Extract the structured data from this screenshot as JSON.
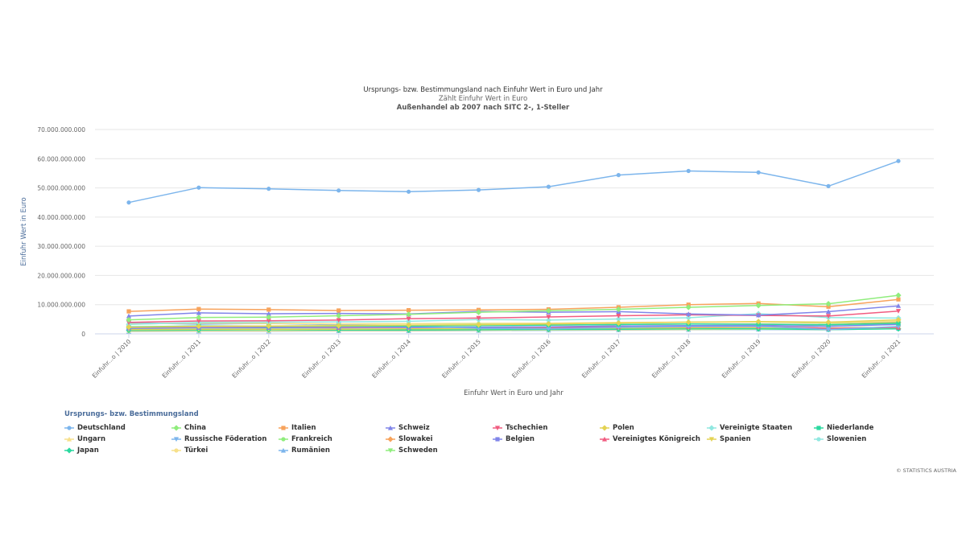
{
  "chart_data": {
    "type": "line",
    "title": "Ursprungs- bzw. Bestimmungsland nach Einfuhr Wert in Euro und Jahr",
    "subtitle": "Zählt Einfuhr Wert in Euro",
    "subtitle2": "Außenhandel ab 2007 nach SITC 2-, 1-Steller",
    "xlabel": "Einfuhr Wert in Euro und Jahr",
    "ylabel": "Einfuhr Wert in Euro",
    "categories": [
      "Einfuhr...o | 2010",
      "Einfuhr...o | 2011",
      "Einfuhr...o | 2012",
      "Einfuhr...o | 2013",
      "Einfuhr...o | 2014",
      "Einfuhr...o | 2015",
      "Einfuhr...o | 2016",
      "Einfuhr...o | 2017",
      "Einfuhr...o | 2018",
      "Einfuhr...o | 2019",
      "Einfuhr...o | 2020",
      "Einfuhr...o | 2021"
    ],
    "yticks": [
      0,
      10000000000,
      20000000000,
      30000000000,
      40000000000,
      50000000000,
      60000000000,
      70000000000
    ],
    "ytick_labels": [
      "0",
      "10.000.000.000",
      "20.000.000.000",
      "30.000.000.000",
      "40.000.000.000",
      "50.000.000.000",
      "60.000.000.000",
      "70.000.000.000"
    ],
    "ylim": [
      0,
      70000000000
    ],
    "grid": true,
    "legend_title": "Ursprungs- bzw. Bestimmungsland",
    "legend_placement": "bottom",
    "series": [
      {
        "name": "Deutschland",
        "color": "#7cb5ec",
        "marker": "circle",
        "values": [
          45000000000,
          50100000000,
          49700000000,
          49100000000,
          48700000000,
          49300000000,
          50400000000,
          54400000000,
          55800000000,
          55300000000,
          50600000000,
          59200000000
        ]
      },
      {
        "name": "China",
        "color": "#90ed7d",
        "marker": "diamond",
        "values": [
          4800000000,
          5600000000,
          5700000000,
          6200000000,
          6700000000,
          7400000000,
          7900000000,
          8400000000,
          9100000000,
          9700000000,
          10300000000,
          13200000000
        ]
      },
      {
        "name": "Italien",
        "color": "#f7a35c",
        "marker": "square",
        "values": [
          7700000000,
          8500000000,
          8300000000,
          8000000000,
          8100000000,
          8200000000,
          8400000000,
          9100000000,
          10000000000,
          10400000000,
          9300000000,
          11800000000
        ]
      },
      {
        "name": "Schweiz",
        "color": "#8085e9",
        "marker": "triangle",
        "values": [
          6100000000,
          7200000000,
          6900000000,
          7000000000,
          6800000000,
          7700000000,
          7400000000,
          7600000000,
          6800000000,
          6400000000,
          7600000000,
          9600000000
        ]
      },
      {
        "name": "Tschechien",
        "color": "#f15c80",
        "marker": "triangle-down",
        "values": [
          3900000000,
          4400000000,
          4500000000,
          4700000000,
          5200000000,
          5400000000,
          5800000000,
          6200000000,
          6500000000,
          6300000000,
          6100000000,
          7800000000
        ]
      },
      {
        "name": "Polen",
        "color": "#e4d354",
        "marker": "diamond",
        "values": [
          2300000000,
          2600000000,
          2700000000,
          2800000000,
          3000000000,
          3100000000,
          3400000000,
          3700000000,
          4000000000,
          4200000000,
          4000000000,
          4800000000
        ]
      },
      {
        "name": "Vereinigte Staaten",
        "color": "#91e8e1",
        "marker": "diamond",
        "values": [
          3200000000,
          3900000000,
          4000000000,
          4100000000,
          4300000000,
          4900000000,
          4700000000,
          5100000000,
          5500000000,
          6900000000,
          5600000000,
          5400000000
        ]
      },
      {
        "name": "Niederlande",
        "color": "#2bd9a0",
        "marker": "square",
        "values": [
          2400000000,
          2700000000,
          2600000000,
          2700000000,
          2700000000,
          2800000000,
          3000000000,
          3200000000,
          3400000000,
          3300000000,
          3100000000,
          3600000000
        ]
      },
      {
        "name": "Ungarn",
        "color": "#f7e08a",
        "marker": "triangle",
        "values": [
          3400000000,
          3700000000,
          3600000000,
          3400000000,
          3500000000,
          3600000000,
          3700000000,
          3900000000,
          4000000000,
          4100000000,
          3800000000,
          4300000000
        ]
      },
      {
        "name": "Russische Föderation",
        "color": "#7cb5ec",
        "marker": "triangle-down",
        "values": [
          3800000000,
          3300000000,
          3600000000,
          3100000000,
          2700000000,
          1900000000,
          1700000000,
          2200000000,
          2500000000,
          2600000000,
          1500000000,
          2500000000
        ]
      },
      {
        "name": "Frankreich",
        "color": "#90ed7d",
        "marker": "circle",
        "values": [
          3400000000,
          3700000000,
          3500000000,
          3400000000,
          3500000000,
          3500000000,
          3600000000,
          3800000000,
          4000000000,
          4100000000,
          3600000000,
          4200000000
        ]
      },
      {
        "name": "Slowakei",
        "color": "#f7a35c",
        "marker": "diamond",
        "values": [
          2300000000,
          2700000000,
          2600000000,
          2600000000,
          2700000000,
          2900000000,
          3000000000,
          3200000000,
          3400000000,
          3400000000,
          3100000000,
          3900000000
        ]
      },
      {
        "name": "Belgien",
        "color": "#8085e9",
        "marker": "square",
        "values": [
          1900000000,
          2100000000,
          2100000000,
          2200000000,
          2200000000,
          2300000000,
          2400000000,
          2700000000,
          2800000000,
          2900000000,
          2600000000,
          3200000000
        ]
      },
      {
        "name": "Vereinigtes Königreich",
        "color": "#f15c80",
        "marker": "triangle",
        "values": [
          2100000000,
          2200000000,
          2200000000,
          2100000000,
          2200000000,
          2300000000,
          2200000000,
          2300000000,
          2400000000,
          2500000000,
          1900000000,
          2200000000
        ]
      },
      {
        "name": "Spanien",
        "color": "#e4d354",
        "marker": "triangle-down",
        "values": [
          1500000000,
          1600000000,
          1600000000,
          1600000000,
          1700000000,
          1800000000,
          1900000000,
          2000000000,
          2100000000,
          2200000000,
          2000000000,
          2300000000
        ]
      },
      {
        "name": "Slowenien",
        "color": "#91e8e1",
        "marker": "circle",
        "values": [
          1800000000,
          2000000000,
          2000000000,
          2000000000,
          2100000000,
          2200000000,
          2300000000,
          2500000000,
          2700000000,
          2700000000,
          2600000000,
          3400000000
        ]
      },
      {
        "name": "Japan",
        "color": "#2bd9a0",
        "marker": "diamond",
        "values": [
          1200000000,
          1300000000,
          1400000000,
          1300000000,
          1300000000,
          1400000000,
          1500000000,
          1600000000,
          1700000000,
          1700000000,
          1500000000,
          1700000000
        ]
      },
      {
        "name": "Türkei",
        "color": "#f7e08a",
        "marker": "circle",
        "values": [
          900000000,
          1000000000,
          1000000000,
          1100000000,
          1100000000,
          1200000000,
          1300000000,
          1400000000,
          1500000000,
          1600000000,
          1500000000,
          2000000000
        ]
      },
      {
        "name": "Rumänien",
        "color": "#7cb5ec",
        "marker": "triangle",
        "values": [
          800000000,
          900000000,
          900000000,
          1000000000,
          1000000000,
          1100000000,
          1200000000,
          1300000000,
          1400000000,
          1500000000,
          1400000000,
          1800000000
        ]
      },
      {
        "name": "Schweden",
        "color": "#90ed7d",
        "marker": "triangle-down",
        "values": [
          1300000000,
          1500000000,
          1400000000,
          1400000000,
          1400000000,
          1500000000,
          1600000000,
          1700000000,
          1800000000,
          1800000000,
          1700000000,
          2000000000
        ]
      }
    ]
  },
  "credits": "© STATISTICS AUSTRIA"
}
